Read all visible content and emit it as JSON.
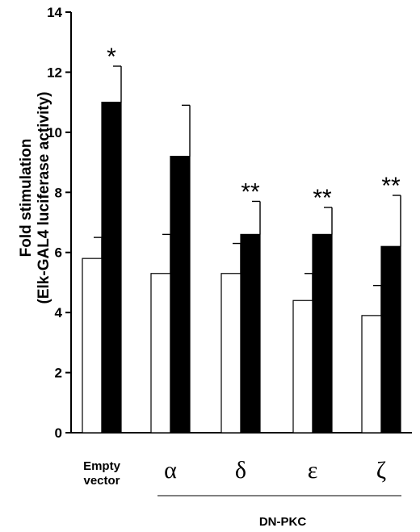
{
  "chart_data": {
    "type": "bar",
    "ylabel_line1": "Fold stimulation",
    "ylabel_line2": "(Elk-GAL4 luciferase activity)",
    "ylim": [
      0,
      14
    ],
    "yticks": [
      "0",
      "2",
      "4",
      "6",
      "8",
      "10",
      "12",
      "14"
    ],
    "categories": [
      {
        "line1": "Empty",
        "line2": "vector"
      },
      {
        "line1": "α",
        "line2": ""
      },
      {
        "line1": "δ",
        "line2": ""
      },
      {
        "line1": "ε",
        "line2": ""
      },
      {
        "line1": "ζ",
        "line2": ""
      }
    ],
    "group_label": "DN-PKC",
    "series": [
      {
        "fill": "#ffffff",
        "values": [
          5.8,
          5.3,
          5.3,
          4.4,
          3.9
        ],
        "errors": [
          0.7,
          1.3,
          1.0,
          0.9,
          1.0
        ]
      },
      {
        "fill": "#000000",
        "values": [
          11.0,
          9.2,
          6.6,
          6.6,
          6.2
        ],
        "errors": [
          1.2,
          1.7,
          1.1,
          0.9,
          1.7
        ]
      }
    ],
    "significance": [
      "*",
      "",
      "**",
      "**",
      "**"
    ],
    "grid": false,
    "legend": "none"
  }
}
